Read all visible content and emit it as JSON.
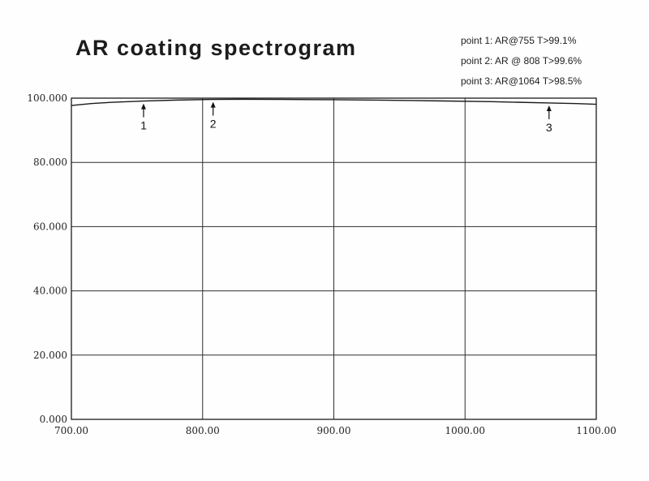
{
  "header": {
    "title": "AR coating spectrogram"
  },
  "annotations": [
    {
      "text": "point 1: AR@755  T>99.1%"
    },
    {
      "text": "point 2: AR @ 808  T>99.6%"
    },
    {
      "text": "point 3: AR@1064 T>98.5%"
    }
  ],
  "chart_data": {
    "type": "line",
    "title": "AR coating spectrogram",
    "xlabel": "",
    "ylabel": "",
    "xlim": [
      700,
      1100
    ],
    "ylim": [
      0,
      100
    ],
    "grid": true,
    "legend": false,
    "x_ticks": [
      700,
      800,
      900,
      1000,
      1100
    ],
    "x_tick_labels": [
      "700.00",
      "800.00",
      "900.00",
      "1000.00",
      "1100.00"
    ],
    "y_ticks": [
      0,
      20,
      40,
      60,
      80,
      100
    ],
    "y_tick_labels": [
      "0.000",
      "20.000",
      "40.000",
      "60.000",
      "80.000",
      "100.000"
    ],
    "series": [
      {
        "name": "AR coating transmission (%)",
        "x": [
          700,
          715,
          730,
          755,
          780,
          808,
          830,
          860,
          900,
          940,
          980,
          1020,
          1064,
          1085,
          1100
        ],
        "y": [
          97.7,
          98.3,
          98.7,
          99.1,
          99.4,
          99.6,
          99.65,
          99.6,
          99.5,
          99.35,
          99.15,
          98.9,
          98.5,
          98.3,
          98.1
        ]
      }
    ],
    "markers": [
      {
        "x": 755,
        "label": "1",
        "note": "point 1: AR@755  T>99.1%"
      },
      {
        "x": 808,
        "label": "2",
        "note": "point 2: AR @ 808  T>99.6%"
      },
      {
        "x": 1064,
        "label": "3",
        "note": "point 3: AR@1064 T>98.5%"
      }
    ],
    "colors": {
      "grid": "#2d2d2d",
      "axis": "#1a1a1a",
      "line": "#1a1a1a",
      "marker": "#111111"
    }
  }
}
